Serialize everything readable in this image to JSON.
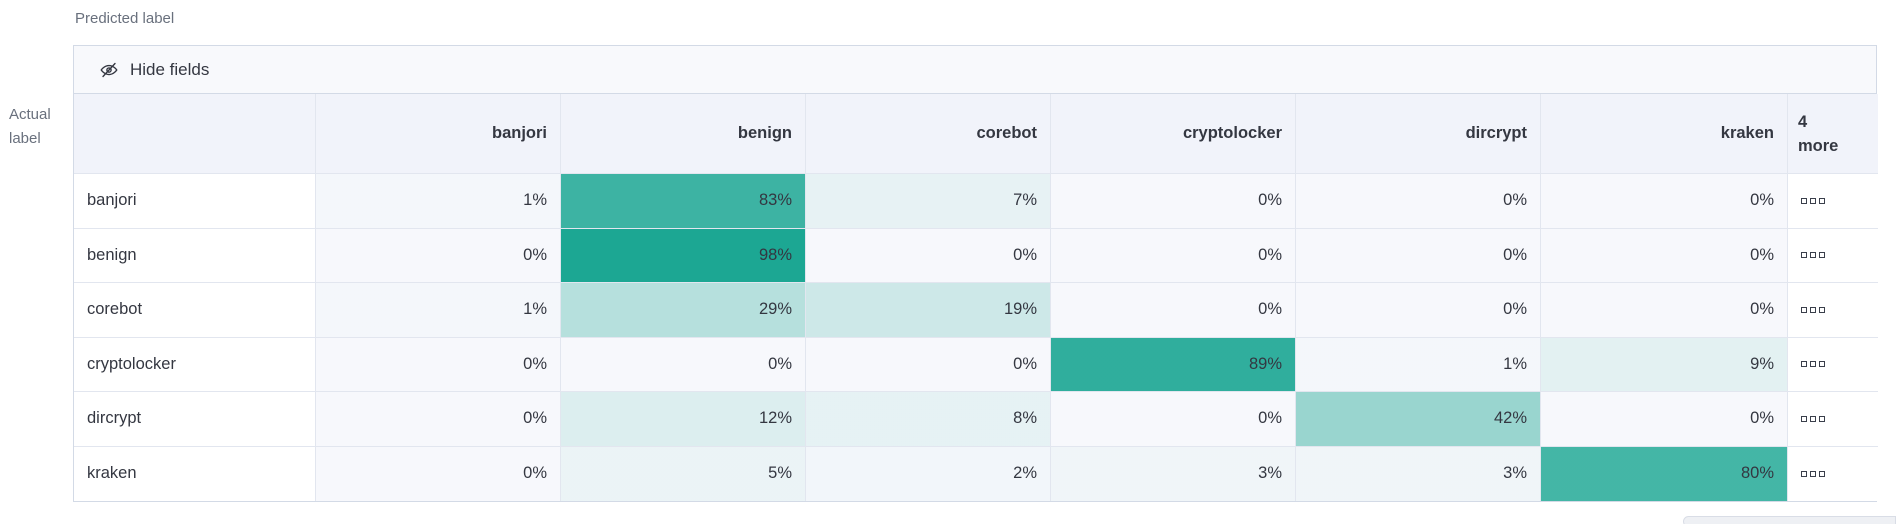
{
  "axes": {
    "predicted_label": "Predicted label",
    "actual_label": "Actual label"
  },
  "toolbar": {
    "hide_fields_label": "Hide fields",
    "hide_fields_icon": "eye-closed-icon"
  },
  "matrix": {
    "columns": [
      "banjori",
      "benign",
      "corebot",
      "cryptolocker",
      "dircrypt",
      "kraken"
    ],
    "more_columns_label": "4 more",
    "more_cell_icon": "boxes-horizontal-icon",
    "value_suffix": "%",
    "rows": [
      {
        "label": "banjori",
        "values": [
          1,
          83,
          7,
          0,
          0,
          0
        ]
      },
      {
        "label": "benign",
        "values": [
          0,
          98,
          0,
          0,
          0,
          0
        ]
      },
      {
        "label": "corebot",
        "values": [
          1,
          29,
          19,
          0,
          0,
          0
        ]
      },
      {
        "label": "cryptolocker",
        "values": [
          0,
          0,
          0,
          89,
          1,
          9
        ]
      },
      {
        "label": "dircrypt",
        "values": [
          0,
          12,
          8,
          0,
          42,
          0
        ]
      },
      {
        "label": "kraken",
        "values": [
          0,
          5,
          2,
          3,
          3,
          80
        ]
      }
    ]
  },
  "colors": {
    "heatmap_base_rgb": "23,165,145",
    "cell_default_bg": "#f7f8fc",
    "header_bg": "#f1f3fa",
    "toolbar_bg": "#f8f9fc",
    "text": "#343741",
    "muted_text": "#69707d",
    "outer_border": "#d3dae6",
    "inner_border": "#e2e6ef"
  },
  "chart_data": {
    "type": "heatmap",
    "x_categories": [
      "banjori",
      "benign",
      "corebot",
      "cryptolocker",
      "dircrypt",
      "kraken"
    ],
    "y_categories": [
      "banjori",
      "benign",
      "corebot",
      "cryptolocker",
      "dircrypt",
      "kraken"
    ],
    "values_percent": [
      [
        1,
        83,
        7,
        0,
        0,
        0
      ],
      [
        0,
        98,
        0,
        0,
        0,
        0
      ],
      [
        1,
        29,
        19,
        0,
        0,
        0
      ],
      [
        0,
        0,
        0,
        89,
        1,
        9
      ],
      [
        0,
        12,
        8,
        0,
        42,
        0
      ],
      [
        0,
        5,
        2,
        3,
        3,
        80
      ]
    ],
    "xlabel": "Predicted label",
    "ylabel": "Actual label",
    "hidden_columns_label": "4 more",
    "legend_position": "none",
    "grid": true
  }
}
